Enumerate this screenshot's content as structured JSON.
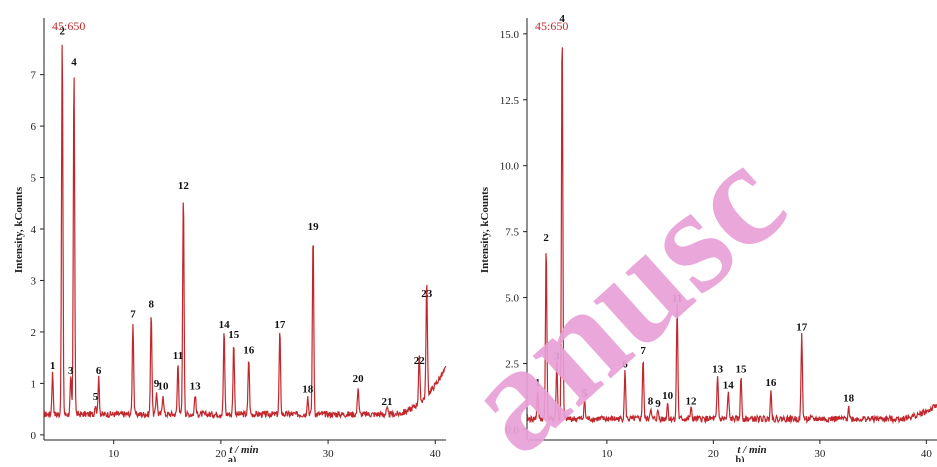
{
  "colors": {
    "trace": "#c1272d",
    "axis": "#222222",
    "watermark": "#e8a0d6",
    "method_label": "#c1272d"
  },
  "watermark": {
    "text": "Manuscript",
    "visible": "anusc"
  },
  "chart_data": [
    {
      "type": "line",
      "panel_label": "a)",
      "method_label": "45:650",
      "xlabel": "t / min",
      "ylabel": "Intensity, kCounts",
      "xlim": [
        3.5,
        41
      ],
      "ylim": [
        -0.1,
        8.1
      ],
      "x_ticks": [
        10,
        20,
        30,
        40
      ],
      "y_ticks": [
        0,
        1,
        2,
        3,
        4,
        5,
        6,
        7
      ],
      "y_tick_labels": [
        "0",
        "1",
        "2",
        "3",
        "4",
        "5",
        "6",
        "7"
      ],
      "baseline": 0.4,
      "peaks": [
        {
          "label": "1",
          "x": 4.3,
          "y": 1.2
        },
        {
          "label": "2",
          "x": 5.2,
          "y": 7.7
        },
        {
          "label": "3",
          "x": 6.0,
          "y": 1.1
        },
        {
          "label": "4",
          "x": 6.3,
          "y": 7.1
        },
        {
          "label": "5",
          "x": 8.3,
          "y": 0.6
        },
        {
          "label": "6",
          "x": 8.6,
          "y": 1.1
        },
        {
          "label": "7",
          "x": 11.8,
          "y": 2.2
        },
        {
          "label": "8",
          "x": 13.5,
          "y": 2.4
        },
        {
          "label": "9",
          "x": 14.0,
          "y": 0.85
        },
        {
          "label": "10",
          "x": 14.6,
          "y": 0.8
        },
        {
          "label": "11",
          "x": 16.0,
          "y": 1.4
        },
        {
          "label": "12",
          "x": 16.5,
          "y": 4.7
        },
        {
          "label": "13",
          "x": 17.6,
          "y": 0.8
        },
        {
          "label": "14",
          "x": 20.3,
          "y": 2.0
        },
        {
          "label": "15",
          "x": 21.2,
          "y": 1.8
        },
        {
          "label": "16",
          "x": 22.6,
          "y": 1.5
        },
        {
          "label": "17",
          "x": 25.5,
          "y": 2.0
        },
        {
          "label": "18",
          "x": 28.1,
          "y": 0.75
        },
        {
          "label": "19",
          "x": 28.6,
          "y": 3.9
        },
        {
          "label": "20",
          "x": 32.8,
          "y": 0.95
        },
        {
          "label": "21",
          "x": 35.5,
          "y": 0.5
        },
        {
          "label": "22",
          "x": 38.5,
          "y": 1.3
        },
        {
          "label": "23",
          "x": 39.2,
          "y": 2.6
        }
      ]
    },
    {
      "type": "line",
      "panel_label": "b)",
      "method_label": "45:650",
      "xlabel": "t / min",
      "ylabel": "Intensity, kCounts",
      "xlim": [
        2.5,
        41
      ],
      "ylim": [
        -0.4,
        15.6
      ],
      "x_ticks": [
        10,
        20,
        30,
        40
      ],
      "x_tick_labels": [
        "10",
        "20",
        "30",
        "40"
      ],
      "y_ticks": [
        0,
        2.5,
        5,
        7.5,
        10,
        12.5,
        15
      ],
      "y_tick_labels": [
        "0.0",
        "2.5",
        "5.0",
        "7.5",
        "10.0",
        "12.5",
        "15.0"
      ],
      "baseline": 0.4,
      "peaks": [
        {
          "label": "1",
          "x": 3.5,
          "y": 1.5
        },
        {
          "label": "2",
          "x": 4.3,
          "y": 7.0
        },
        {
          "label": "3",
          "x": 5.3,
          "y": 2.5
        },
        {
          "label": "4",
          "x": 5.8,
          "y": 15.3
        },
        {
          "label": "5",
          "x": 7.9,
          "y": 1.1
        },
        {
          "label": "6",
          "x": 11.7,
          "y": 2.2
        },
        {
          "label": "7",
          "x": 13.4,
          "y": 2.7
        },
        {
          "label": "8",
          "x": 14.1,
          "y": 0.8
        },
        {
          "label": "9",
          "x": 14.8,
          "y": 0.7
        },
        {
          "label": "10",
          "x": 15.7,
          "y": 1.0
        },
        {
          "label": "11",
          "x": 16.6,
          "y": 4.7
        },
        {
          "label": "12",
          "x": 17.9,
          "y": 0.8
        },
        {
          "label": "13",
          "x": 20.4,
          "y": 2.0
        },
        {
          "label": "14",
          "x": 21.4,
          "y": 1.4
        },
        {
          "label": "15",
          "x": 22.6,
          "y": 2.0
        },
        {
          "label": "16",
          "x": 25.4,
          "y": 1.5
        },
        {
          "label": "17",
          "x": 28.3,
          "y": 3.6
        },
        {
          "label": "18",
          "x": 32.7,
          "y": 0.9
        }
      ]
    }
  ]
}
